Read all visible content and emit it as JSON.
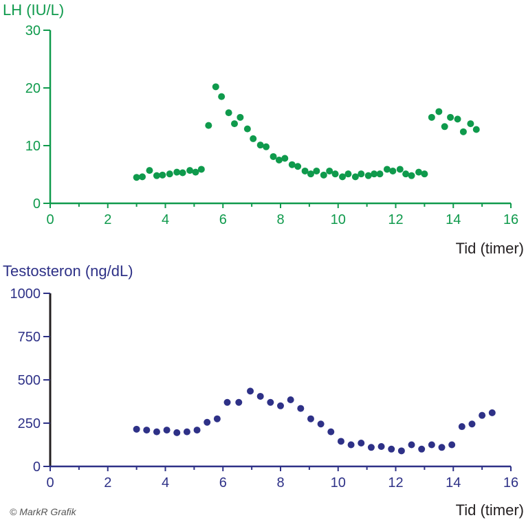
{
  "colors": {
    "lh": "#0f9a4c",
    "testosterone": "#2e3187",
    "text_dark": "#231f20",
    "credit": "#555555"
  },
  "credit": "© MarkR Grafik",
  "chart_data": [
    {
      "type": "scatter",
      "title": "",
      "ylabel": "LH (IU/L)",
      "xlabel": "Tid (timer)",
      "xlim": [
        0,
        16
      ],
      "ylim": [
        0,
        30
      ],
      "x_ticks": [
        "0",
        "2",
        "4",
        "6",
        "8",
        "10",
        "12",
        "14",
        "16"
      ],
      "y_ticks": [
        "0",
        "10",
        "20",
        "30"
      ],
      "x_tick_values": [
        0,
        2,
        4,
        6,
        8,
        10,
        12,
        14,
        16
      ],
      "y_tick_values": [
        0,
        10,
        20,
        30
      ],
      "series": [
        {
          "color": "#0f9a4c",
          "points": [
            [
              3.0,
              4.5
            ],
            [
              3.2,
              4.6
            ],
            [
              3.45,
              5.7
            ],
            [
              3.7,
              4.8
            ],
            [
              3.9,
              4.9
            ],
            [
              4.15,
              5.1
            ],
            [
              4.4,
              5.4
            ],
            [
              4.6,
              5.3
            ],
            [
              4.85,
              5.7
            ],
            [
              5.05,
              5.4
            ],
            [
              5.25,
              5.9
            ],
            [
              5.5,
              13.5
            ],
            [
              5.75,
              20.2
            ],
            [
              5.95,
              18.5
            ],
            [
              6.2,
              15.7
            ],
            [
              6.4,
              13.8
            ],
            [
              6.6,
              14.9
            ],
            [
              6.85,
              12.9
            ],
            [
              7.05,
              11.2
            ],
            [
              7.3,
              10.1
            ],
            [
              7.5,
              9.8
            ],
            [
              7.75,
              8.1
            ],
            [
              7.95,
              7.5
            ],
            [
              8.15,
              7.8
            ],
            [
              8.4,
              6.7
            ],
            [
              8.6,
              6.4
            ],
            [
              8.85,
              5.6
            ],
            [
              9.05,
              5.1
            ],
            [
              9.25,
              5.6
            ],
            [
              9.5,
              4.9
            ],
            [
              9.7,
              5.6
            ],
            [
              9.9,
              5.1
            ],
            [
              10.15,
              4.6
            ],
            [
              10.35,
              5.1
            ],
            [
              10.6,
              4.6
            ],
            [
              10.8,
              5.1
            ],
            [
              11.05,
              4.8
            ],
            [
              11.25,
              5.1
            ],
            [
              11.45,
              5.1
            ],
            [
              11.7,
              5.9
            ],
            [
              11.9,
              5.6
            ],
            [
              12.15,
              5.9
            ],
            [
              12.35,
              5.1
            ],
            [
              12.55,
              4.8
            ],
            [
              12.8,
              5.4
            ],
            [
              13.0,
              5.1
            ],
            [
              13.25,
              14.9
            ],
            [
              13.5,
              15.9
            ],
            [
              13.7,
              13.3
            ],
            [
              13.9,
              14.9
            ],
            [
              14.15,
              14.6
            ],
            [
              14.35,
              12.4
            ],
            [
              14.6,
              13.8
            ],
            [
              14.8,
              12.8
            ]
          ]
        }
      ]
    },
    {
      "type": "scatter",
      "title": "",
      "ylabel": "Testosteron (ng/dL)",
      "xlabel": "Tid (timer)",
      "xlim": [
        0,
        16
      ],
      "ylim": [
        0,
        1000
      ],
      "x_ticks": [
        "0",
        "2",
        "4",
        "6",
        "8",
        "10",
        "12",
        "14",
        "16"
      ],
      "y_ticks": [
        "0",
        "250",
        "500",
        "750",
        "1000"
      ],
      "x_tick_values": [
        0,
        2,
        4,
        6,
        8,
        10,
        12,
        14,
        16
      ],
      "y_tick_values": [
        0,
        250,
        500,
        750,
        1000
      ],
      "series": [
        {
          "color": "#2e3187",
          "points": [
            [
              3.0,
              215
            ],
            [
              3.35,
              210
            ],
            [
              3.7,
              200
            ],
            [
              4.05,
              210
            ],
            [
              4.4,
              195
            ],
            [
              4.75,
              200
            ],
            [
              5.1,
              210
            ],
            [
              5.45,
              255
            ],
            [
              5.8,
              275
            ],
            [
              6.15,
              370
            ],
            [
              6.55,
              370
            ],
            [
              6.95,
              435
            ],
            [
              7.3,
              405
            ],
            [
              7.65,
              370
            ],
            [
              8.0,
              350
            ],
            [
              8.35,
              385
            ],
            [
              8.7,
              335
            ],
            [
              9.05,
              275
            ],
            [
              9.4,
              245
            ],
            [
              9.75,
              200
            ],
            [
              10.1,
              145
            ],
            [
              10.45,
              125
            ],
            [
              10.8,
              135
            ],
            [
              11.15,
              110
            ],
            [
              11.5,
              115
            ],
            [
              11.85,
              100
            ],
            [
              12.2,
              90
            ],
            [
              12.55,
              125
            ],
            [
              12.9,
              100
            ],
            [
              13.25,
              125
            ],
            [
              13.6,
              110
            ],
            [
              13.95,
              125
            ],
            [
              14.3,
              230
            ],
            [
              14.65,
              245
            ],
            [
              15.0,
              295
            ],
            [
              15.35,
              310
            ]
          ]
        }
      ]
    }
  ]
}
